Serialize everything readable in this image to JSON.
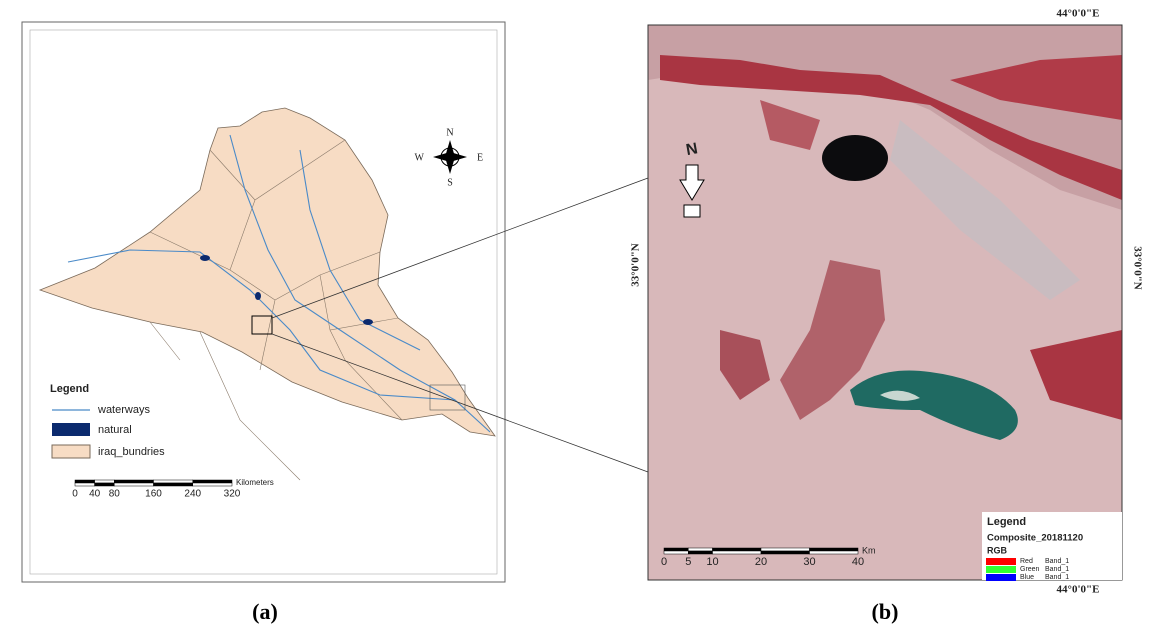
{
  "panel_a": {
    "caption": "(a)",
    "compass": {
      "n": "N",
      "s": "S",
      "w": "W",
      "e": "E"
    },
    "legend": {
      "title": "Legend",
      "items": [
        "waterways",
        "natural",
        "iraq_bundries"
      ]
    },
    "scale": {
      "ticks": [
        0,
        40,
        80,
        160,
        240,
        320
      ],
      "unit": "Kilometers"
    }
  },
  "panel_b": {
    "caption": "(b)",
    "lon_label": "44°0'0\"E",
    "lat_label": "33°0'0\"N",
    "north": "N",
    "legend": {
      "title": "Legend",
      "layer": "Composite_20181120",
      "subtitle": "RGB",
      "items": [
        {
          "swatch": "Red",
          "band": "Band_1"
        },
        {
          "swatch": "Green",
          "band": "Band_1"
        },
        {
          "swatch": "Blue",
          "band": "Band_1"
        }
      ]
    },
    "scale": {
      "ticks": [
        0,
        5,
        10,
        20,
        30,
        40
      ],
      "unit": "Km"
    }
  }
}
